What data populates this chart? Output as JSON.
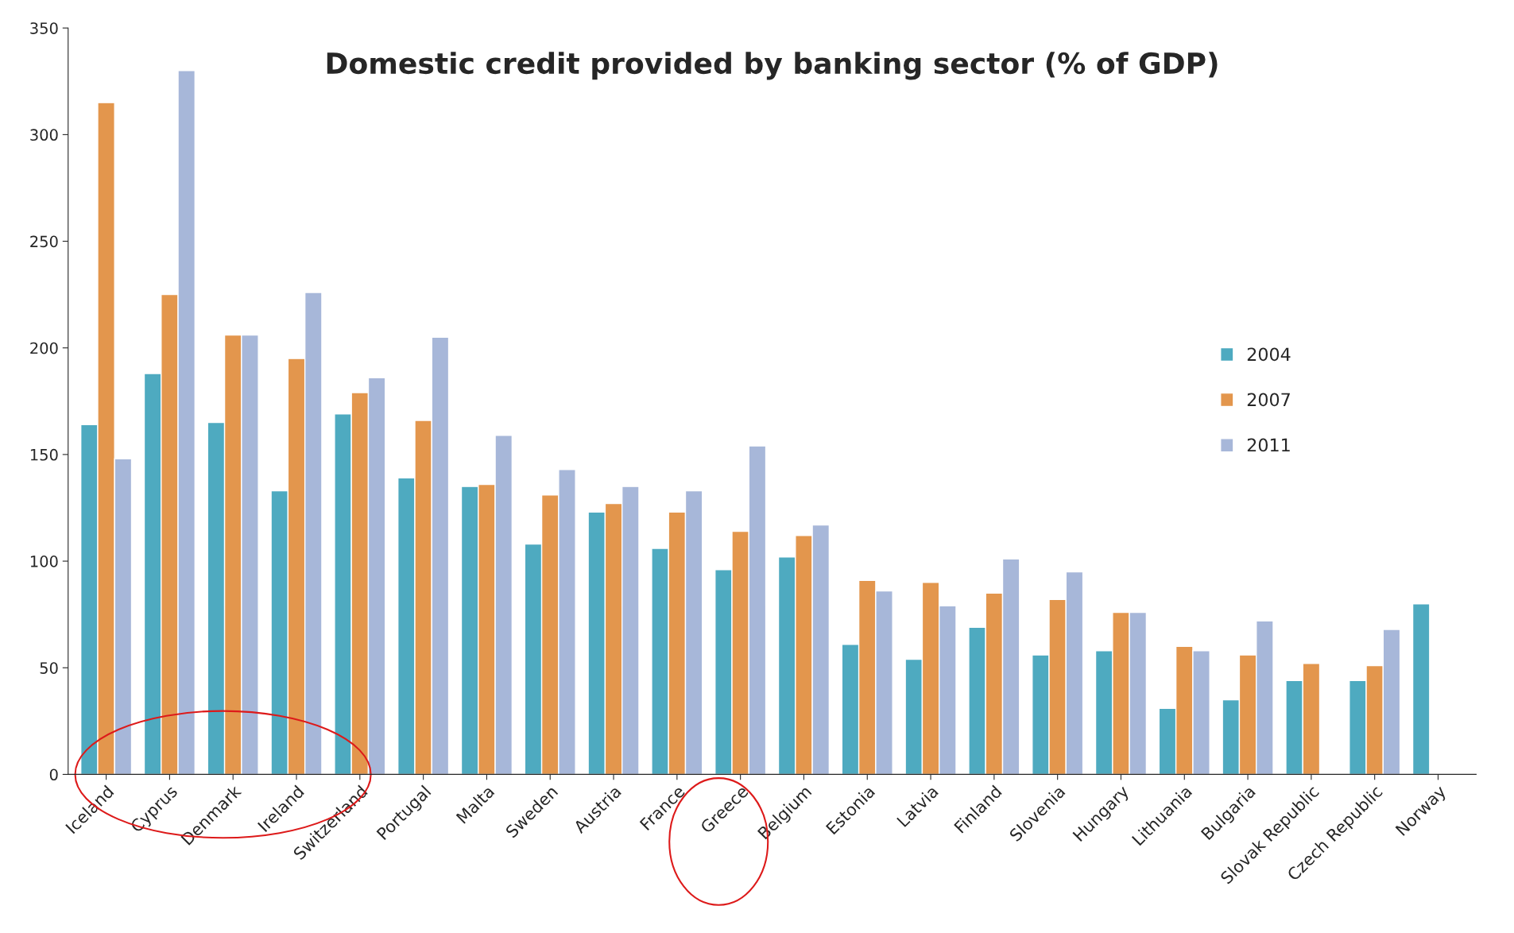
{
  "chart_data": {
    "type": "bar",
    "title": "Domestic credit provided by banking sector (% of GDP)",
    "categories": [
      "Iceland",
      "Cyprus",
      "Denmark",
      "Ireland",
      "Switzerland",
      "Portugal",
      "Malta",
      "Sweden",
      "Austria",
      "France",
      "Greece",
      "Belgium",
      "Estonia",
      "Latvia",
      "Finland",
      "Slovenia",
      "Hungary",
      "Lithuania",
      "Bulgaria",
      "Slovak Republic",
      "Czech Republic",
      "Norway"
    ],
    "series": [
      {
        "name": "2004",
        "color": "#4eaac0",
        "values": [
          164,
          188,
          165,
          133,
          169,
          139,
          135,
          108,
          123,
          106,
          96,
          102,
          61,
          54,
          69,
          56,
          58,
          31,
          35,
          44,
          44,
          80
        ]
      },
      {
        "name": "2007",
        "color": "#e3964d",
        "values": [
          315,
          225,
          206,
          195,
          179,
          166,
          136,
          131,
          127,
          123,
          114,
          112,
          91,
          90,
          85,
          82,
          76,
          60,
          56,
          52,
          51,
          null
        ]
      },
      {
        "name": "2011",
        "color": "#a7b7d9",
        "values": [
          148,
          330,
          206,
          226,
          186,
          205,
          159,
          143,
          135,
          133,
          154,
          117,
          86,
          79,
          101,
          95,
          76,
          58,
          72,
          null,
          68,
          null
        ]
      }
    ],
    "ylim": [
      0,
      350
    ],
    "yticks": [
      0,
      50,
      100,
      150,
      200,
      250,
      300,
      350
    ],
    "grid": false,
    "legend": "right"
  }
}
